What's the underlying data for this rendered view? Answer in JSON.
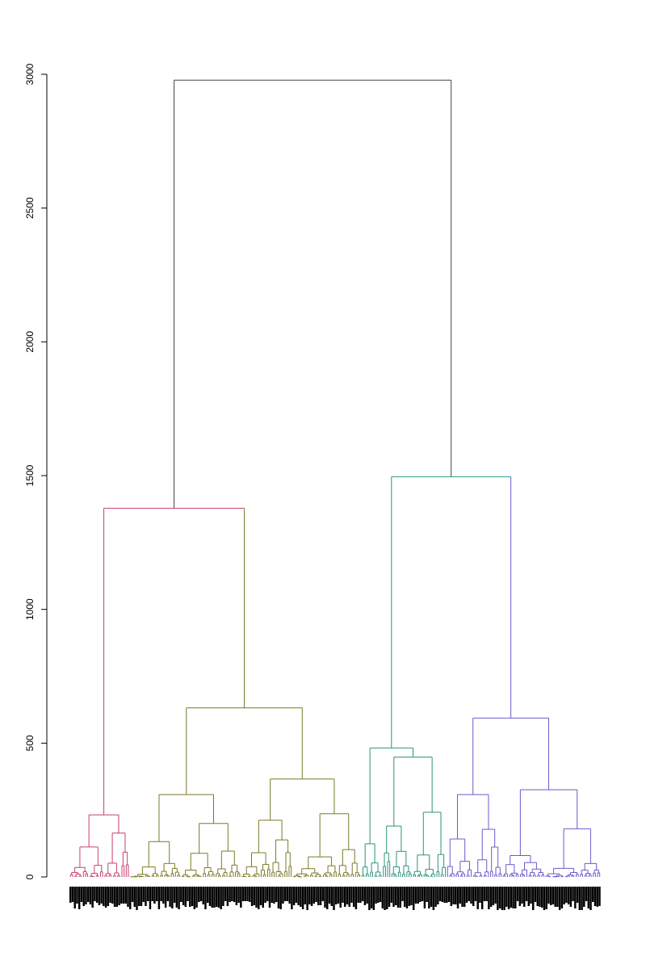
{
  "chart_data": {
    "type": "dendrogram",
    "title": "",
    "xlabel": "",
    "ylabel": "",
    "ylim": [
      0,
      3000
    ],
    "y_ticks": [
      0,
      500,
      1000,
      1500,
      2000,
      2500,
      3000
    ],
    "y_tick_labels": [
      "0",
      "500",
      "1000",
      "1500",
      "2000",
      "2500",
      "3000"
    ],
    "grid": false,
    "legend": "none",
    "colors": {
      "root": "#444444",
      "cluster_1": "#c8406a",
      "cluster_2": "#7a7a28",
      "cluster_3": "#2a9478",
      "cluster_4": "#6a5acd"
    },
    "merges": [
      {
        "id": "root",
        "height": 2978,
        "left": "left_group",
        "right": "right_group",
        "color": "root"
      },
      {
        "id": "left_group",
        "height": 1378,
        "left": "cluster_1",
        "right": "cluster_2",
        "color": "cluster_1"
      },
      {
        "id": "right_group",
        "height": 1496,
        "left": "cluster_3",
        "right": "cluster_4",
        "color": "cluster_3"
      },
      {
        "id": "cluster_1",
        "height": 232,
        "color": "cluster_1"
      },
      {
        "id": "cluster_2",
        "height": 632,
        "color": "cluster_2"
      },
      {
        "id": "cluster_2_a",
        "height": 308,
        "color": "cluster_2"
      },
      {
        "id": "cluster_2_b",
        "height": 366,
        "color": "cluster_2"
      },
      {
        "id": "cluster_3",
        "height": 482,
        "color": "cluster_3"
      },
      {
        "id": "cluster_3_b",
        "height": 448,
        "color": "cluster_3"
      },
      {
        "id": "cluster_4",
        "height": 594,
        "color": "cluster_4"
      },
      {
        "id": "cluster_4_a",
        "height": 308,
        "color": "cluster_4"
      },
      {
        "id": "cluster_4_b",
        "height": 326,
        "color": "cluster_4"
      }
    ]
  }
}
